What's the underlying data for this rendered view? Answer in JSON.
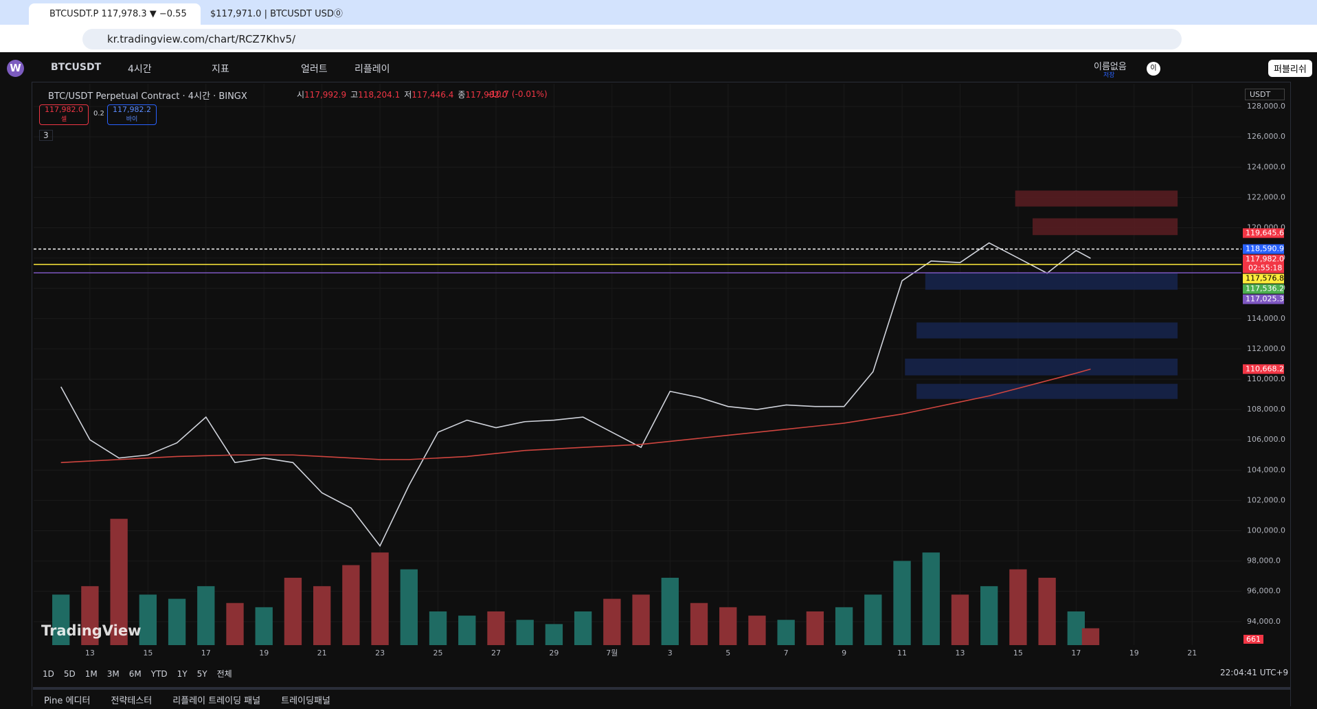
{
  "browser": {
    "tabs": [
      "BTCUSDT.P 117,978.3 ▼ −0.55",
      "$117,971.0 | BTCUSDT USD⓪"
    ],
    "url": "kr.tradingview.com/chart/RCZ7Khv5/"
  },
  "toolbar": {
    "logo": "W",
    "symbol": "BTCUSDT",
    "interval": "4시간",
    "indicators": "지표",
    "alert": "얼러트",
    "replay": "리플레이",
    "layout_name": "이름없음",
    "save": "저장",
    "profile": "이",
    "publish": "퍼블리쉬"
  },
  "legend": {
    "title": "BTC/USDT Perpetual Contract · 4시간 · BINGX",
    "ohlc": [
      [
        "시",
        "117,992.9"
      ],
      [
        "고",
        "118,204.1"
      ],
      [
        "저",
        "117,446.4"
      ],
      [
        "종",
        "117,982.0"
      ]
    ],
    "change": "-10.7 (-0.01%)",
    "sell_price": "117,982.0",
    "sell": "셀",
    "spread": "0.2",
    "buy_price": "117,982.2",
    "buy": "바이",
    "indicators_count": "3"
  },
  "chart_data": {
    "type": "line",
    "currency": "USDT",
    "watermark": "TradingView",
    "last_volume": 661,
    "x": [
      12,
      13,
      14,
      15,
      16,
      17,
      18,
      19,
      20,
      21,
      22,
      23,
      24,
      25,
      26,
      27,
      28,
      29,
      30,
      31,
      32,
      33,
      34,
      35,
      36,
      37,
      38,
      39,
      40,
      41,
      42,
      43,
      44,
      45,
      46,
      47,
      47.5
    ],
    "series": [
      {
        "color": "#d1d4dc",
        "values": [
          109500,
          106000,
          104800,
          105000,
          105800,
          107500,
          104500,
          104800,
          104500,
          102500,
          101500,
          99000,
          103000,
          106500,
          107300,
          106800,
          107200,
          107300,
          107500,
          106500,
          105500,
          109200,
          108800,
          108200,
          108000,
          108300,
          108200,
          108200,
          110500,
          116500,
          117800,
          117700,
          119000,
          118000,
          117000,
          118500,
          117982.0
        ]
      },
      {
        "color": "#d0453f",
        "values": [
          104500,
          104600,
          104700,
          104800,
          104900,
          104950,
          105000,
          105000,
          105000,
          104900,
          104800,
          104700,
          104700,
          104800,
          104900,
          105100,
          105300,
          105400,
          105500,
          105600,
          105700,
          105900,
          106100,
          106300,
          106500,
          106700,
          106900,
          107100,
          107400,
          107700,
          108100,
          108500,
          108900,
          109400,
          109900,
          110400,
          110668.2
        ]
      },
      {
        "axis": "y2",
        "color": "#1f6b63",
        "down_color": "#8c3034",
        "values": [
          360,
          420,
          900,
          360,
          330,
          420,
          300,
          270,
          480,
          420,
          570,
          660,
          540,
          240,
          210,
          240,
          180,
          150,
          240,
          330,
          360,
          480,
          300,
          270,
          210,
          180,
          240,
          270,
          360,
          600,
          660,
          360,
          420,
          540,
          480,
          240,
          120
        ]
      }
    ],
    "xlim": [
      11.06,
      52.7
    ],
    "ylim": [
      92450,
      129500
    ],
    "y2lim": [
      0,
      4000
    ],
    "grid": true,
    "xticks": [
      13,
      15,
      17,
      19,
      21,
      23,
      25,
      27,
      29,
      {
        "value": 31,
        "label": "7월"
      },
      {
        "value": 33,
        "label": "3"
      },
      {
        "value": 35,
        "label": "5"
      },
      {
        "value": 37,
        "label": "7"
      },
      {
        "value": 39,
        "label": "9"
      },
      {
        "value": 41,
        "label": "11"
      },
      {
        "value": 43,
        "label": "13"
      },
      {
        "value": 45,
        "label": "15"
      },
      {
        "value": 47,
        "label": "17"
      },
      {
        "value": 49,
        "label": "19"
      },
      {
        "value": 51,
        "label": "21"
      }
    ],
    "yticks": [
      {
        "value": 94000,
        "label": "94,000.0"
      },
      {
        "value": 96000,
        "label": "96,000.0"
      },
      {
        "value": 98000,
        "label": "98,000.0"
      },
      {
        "value": 100000,
        "label": "100,000.0"
      },
      {
        "value": 102000,
        "label": "102,000.0"
      },
      {
        "value": 104000,
        "label": "104,000.0"
      },
      {
        "value": 106000,
        "label": "106,000.0"
      },
      {
        "value": 108000,
        "label": "108,000.0"
      },
      {
        "value": 110000,
        "label": "110,000.0"
      },
      {
        "value": 112000,
        "label": "112,000.0"
      },
      {
        "value": 114000,
        "label": "114,000.0"
      },
      {
        "value": 116000,
        "label": "116,000.0"
      },
      {
        "value": 118000,
        "label": "118,000.0"
      },
      {
        "value": 120000,
        "label": "120,000.0"
      },
      {
        "value": 122000,
        "label": "122,000.0"
      },
      {
        "value": 124000,
        "label": "124,000.0"
      },
      {
        "value": 126000,
        "label": "126,000.0"
      },
      {
        "value": 128000,
        "label": "128,000.0"
      }
    ],
    "zones": [
      {
        "from": 121400,
        "to": 122454,
        "x0": 44.9,
        "x1": 50.5,
        "color": "#5a1d22"
      },
      {
        "from": 119514,
        "to": 120624,
        "x0": 45.5,
        "x1": 50.5,
        "color": "#5a1d22"
      },
      {
        "from": 115909,
        "to": 117018,
        "x0": 41.8,
        "x1": 50.5,
        "color": "#16254d"
      },
      {
        "from": 112692,
        "to": 113746,
        "x0": 41.5,
        "x1": 50.5,
        "color": "#16254d"
      },
      {
        "from": 110252,
        "to": 111361,
        "x0": 41.1,
        "x1": 50.5,
        "color": "#16254d"
      },
      {
        "from": 108699,
        "to": 109697,
        "x0": 41.5,
        "x1": 50.5,
        "color": "#16254d"
      }
    ],
    "price_labels": [
      {
        "value": 119645.6,
        "label": "119,645.6",
        "color": "#f23645"
      },
      {
        "value": 118590.9,
        "label": "118,590.9",
        "color": "#2962ff",
        "line_style": "dashed"
      },
      {
        "value": 117982.0,
        "label": "117,982.0",
        "color": "#f23645",
        "countdown": "02:55:18"
      },
      {
        "value": 117576.8,
        "label": "117,576.8",
        "color": "#ffeb3b",
        "line_style": "solid"
      },
      {
        "value": 117536.2,
        "label": "117,536.2",
        "color": "#4caf50"
      },
      {
        "value": 117025.3,
        "label": "117,025.3",
        "color": "#7e57c2",
        "line_style": "solid"
      },
      {
        "value": 110668.2,
        "label": "110,668.2",
        "color": "#f23645"
      }
    ]
  },
  "bottom": {
    "timeframes": [
      "1D",
      "5D",
      "1M",
      "3M",
      "6M",
      "YTD",
      "1Y",
      "5Y",
      "전체"
    ],
    "clock": "22:04:41 UTC+9",
    "panels": [
      "Pine 에디터",
      "전략테스터",
      "리플레이 트레이딩 패널",
      "트레이딩패널"
    ]
  }
}
